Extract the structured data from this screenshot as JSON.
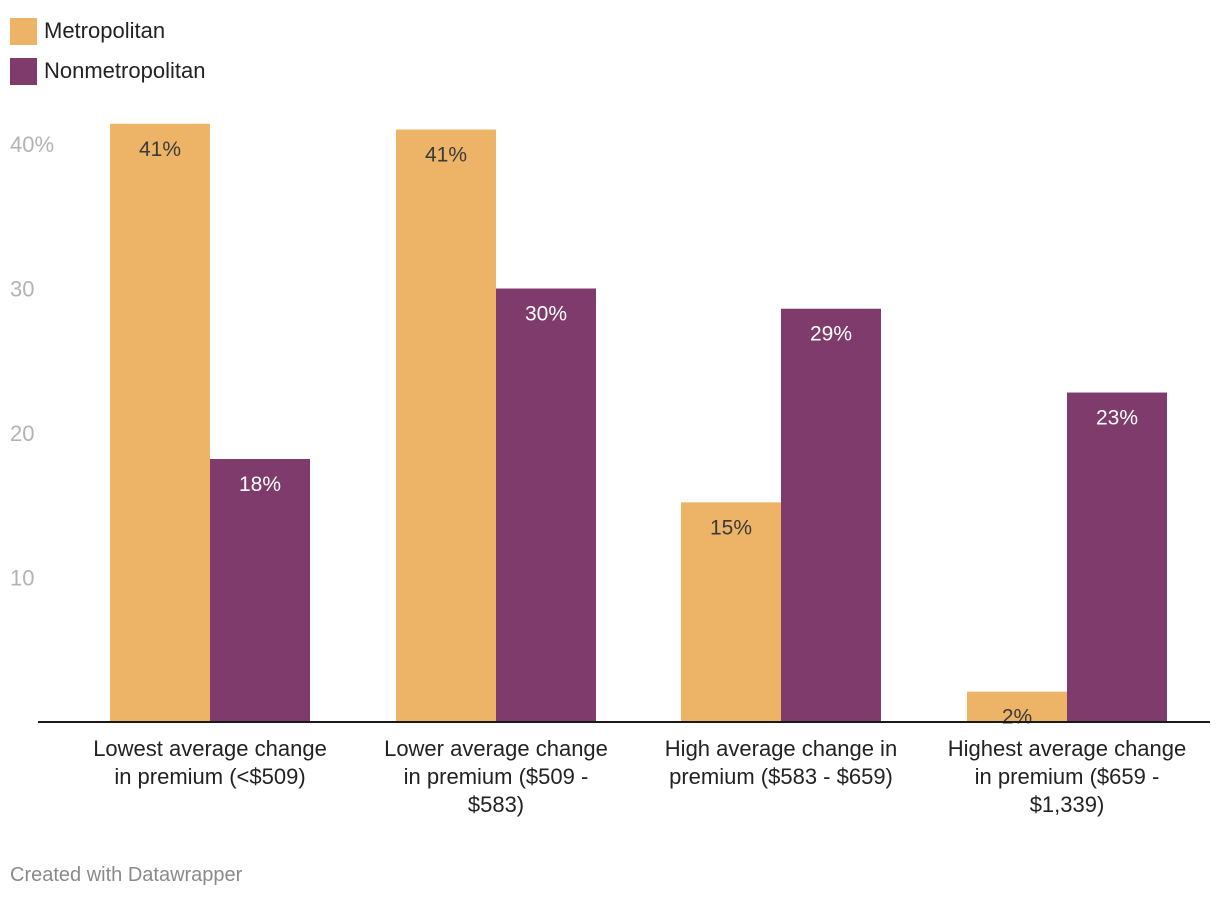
{
  "chart_data": {
    "type": "bar",
    "title": "",
    "xlabel": "",
    "ylabel": "",
    "ylim": [
      0,
      42
    ],
    "yticks": [
      10,
      20,
      30,
      40
    ],
    "ytick_labels": [
      "10",
      "20",
      "30",
      "40%"
    ],
    "categories": [
      [
        "Lowest average change",
        "in premium (<$509)"
      ],
      [
        "Lower average change",
        "in premium ($509 -",
        "$583)"
      ],
      [
        "High average change in",
        "premium ($583 - $659)"
      ],
      [
        "Highest average change",
        "in premium ($659 -",
        "$1,339)"
      ]
    ],
    "series": [
      {
        "name": "Metropolitan",
        "color": "#edb467",
        "label_color": "#3a3a3a",
        "values": [
          41.4,
          41.0,
          15.2,
          2.1
        ],
        "labels": [
          "41%",
          "41%",
          "15%",
          "2%"
        ]
      },
      {
        "name": "Nonmetropolitan",
        "color": "#7e3b6c",
        "label_color": "#ffffff",
        "values": [
          18.2,
          30.0,
          28.6,
          22.8
        ],
        "labels": [
          "18%",
          "30%",
          "29%",
          "23%"
        ]
      }
    ],
    "legend_position": "top-left"
  },
  "footer": "Created with Datawrapper"
}
